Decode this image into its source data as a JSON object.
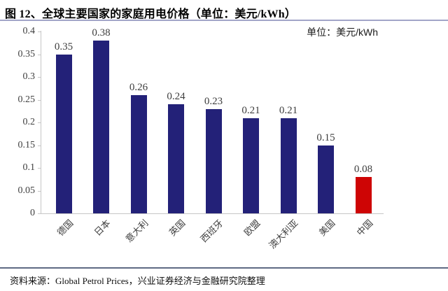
{
  "header": {
    "title": "图 12、全球主要国家的家庭用电价格（单位：美元/kWh）"
  },
  "chart": {
    "unit_label": "单位：美元/kWh"
  },
  "chart_data": {
    "type": "bar",
    "title": "全球主要国家的家庭用电价格",
    "unit": "美元/kWh",
    "categories": [
      "德国",
      "日本",
      "意大利",
      "英国",
      "西班牙",
      "欧盟",
      "澳大利亚",
      "美国",
      "中国"
    ],
    "values": [
      0.35,
      0.38,
      0.26,
      0.24,
      0.23,
      0.21,
      0.21,
      0.15,
      0.08
    ],
    "data_labels": [
      "0.35",
      "0.38",
      "0.26",
      "0.24",
      "0.23",
      "0.21",
      "0.21",
      "0.15",
      "0.08"
    ],
    "ylim": [
      0,
      0.4
    ],
    "ytick_step": 0.05,
    "ytick_labels": [
      "0",
      "0.05",
      "0.1",
      "0.15",
      "0.2",
      "0.25",
      "0.3",
      "0.35",
      "0.4"
    ],
    "grid": false,
    "legend": "none",
    "bar_color": "#232178",
    "highlight_category": "中国",
    "highlight_color": "#ce0505"
  },
  "footer": {
    "source": "资料来源：Global Petrol Prices，兴业证券经济与金融研究院整理"
  }
}
